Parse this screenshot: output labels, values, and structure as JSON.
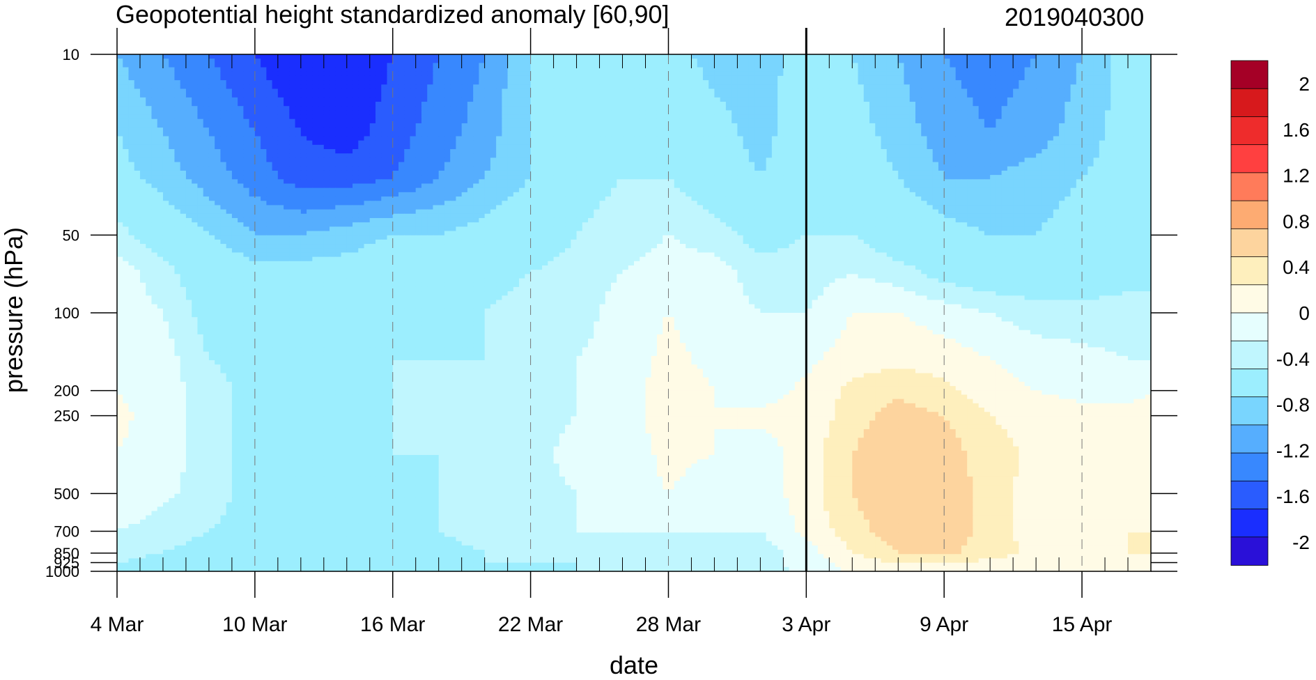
{
  "chart_data": {
    "type": "heatmap",
    "title": "Geopotential height standardized anomaly [60,90]",
    "title_right": "2019040300",
    "xlabel": "date",
    "ylabel": "pressure (hPa)",
    "x_tick_labels": [
      "4 Mar",
      "10 Mar",
      "16 Mar",
      "22 Mar",
      "28 Mar",
      "3 Apr",
      "9 Apr",
      "15 Apr"
    ],
    "x_range_days": [
      0,
      45
    ],
    "x_major_tick_days": [
      0,
      6,
      12,
      18,
      24,
      30,
      36,
      42
    ],
    "y_tick_labels": [
      "10",
      "50",
      "100",
      "200",
      "250",
      "500",
      "700",
      "850",
      "925",
      "1000"
    ],
    "y_tick_values": [
      10,
      50,
      100,
      200,
      250,
      500,
      700,
      850,
      925,
      1000
    ],
    "y_scale": "log",
    "y_range": [
      1000,
      10
    ],
    "vertical_marker_date": "3 Apr",
    "grid": "dashed vertical lines at major date ticks",
    "colorbar": {
      "labels": [
        "2",
        "1.6",
        "1.2",
        "0.8",
        "0.4",
        "0",
        "-0.4",
        "-0.8",
        "-1.2",
        "-1.6",
        "-2"
      ],
      "colors": [
        "#a50026",
        "#d7191c",
        "#ee2c2c",
        "#ff4040",
        "#ff7b5a",
        "#fdab72",
        "#fdd49e",
        "#feefbd",
        "#fffbe6",
        "#e6fefe",
        "#c0f6fe",
        "#9ceefe",
        "#79d5fe",
        "#56aefe",
        "#3888fe",
        "#2a5cfe",
        "#1a2efe",
        "#2a10d8"
      ]
    },
    "contour_levels": [
      -2.0,
      -1.8,
      -1.6,
      -1.4,
      -1.2,
      -1.0,
      -0.8,
      -0.6,
      -0.4,
      -0.2,
      0.0,
      0.2,
      0.4,
      0.6,
      0.8,
      1.0,
      1.2,
      1.4,
      1.6,
      1.8,
      2.0
    ],
    "field": {
      "x_days": [
        0,
        2,
        4,
        6,
        8,
        10,
        12,
        14,
        16,
        18,
        20,
        22,
        24,
        26,
        28,
        30,
        32,
        34,
        36,
        38,
        40,
        42,
        44,
        45
      ],
      "y_hPa": [
        10,
        20,
        30,
        50,
        70,
        100,
        150,
        200,
        250,
        350,
        500,
        700,
        850,
        925,
        1000
      ],
      "values": [
        [
          -1.0,
          -1.2,
          -1.4,
          -1.6,
          -1.8,
          -1.8,
          -1.6,
          -1.4,
          -1.2,
          -0.8,
          -0.6,
          -0.6,
          -0.7,
          -0.9,
          -0.9,
          -0.7,
          -0.8,
          -1.0,
          -1.2,
          -1.3,
          -1.2,
          -1.0,
          -0.7,
          -0.6
        ],
        [
          -0.8,
          -1.0,
          -1.2,
          -1.4,
          -1.6,
          -1.7,
          -1.5,
          -1.3,
          -1.1,
          -0.8,
          -0.6,
          -0.5,
          -0.5,
          -0.7,
          -0.9,
          -0.6,
          -0.7,
          -0.9,
          -1.1,
          -1.2,
          -1.1,
          -0.9,
          -0.7,
          -0.6
        ],
        [
          -0.7,
          -0.9,
          -1.1,
          -1.3,
          -1.5,
          -1.5,
          -1.4,
          -1.2,
          -1.0,
          -0.8,
          -0.5,
          -0.4,
          -0.4,
          -0.6,
          -0.8,
          -0.6,
          -0.6,
          -0.8,
          -1.0,
          -1.0,
          -0.9,
          -0.8,
          -0.7,
          -0.6
        ],
        [
          -0.3,
          -0.6,
          -0.8,
          -1.0,
          -1.0,
          -0.9,
          -0.8,
          -0.8,
          -0.7,
          -0.6,
          -0.4,
          -0.3,
          -0.2,
          -0.3,
          -0.5,
          -0.4,
          -0.4,
          -0.6,
          -0.7,
          -0.8,
          -0.8,
          -0.7,
          -0.6,
          -0.5
        ],
        [
          -0.1,
          -0.3,
          -0.6,
          -0.7,
          -0.7,
          -0.7,
          -0.6,
          -0.6,
          -0.5,
          -0.4,
          -0.3,
          -0.2,
          -0.1,
          -0.1,
          -0.3,
          -0.3,
          -0.2,
          -0.3,
          -0.5,
          -0.6,
          -0.6,
          -0.6,
          -0.5,
          -0.5
        ],
        [
          -0.1,
          -0.2,
          -0.5,
          -0.6,
          -0.6,
          -0.5,
          -0.5,
          -0.5,
          -0.4,
          -0.3,
          -0.3,
          -0.1,
          0.0,
          -0.1,
          -0.2,
          -0.2,
          0.0,
          0.0,
          -0.1,
          -0.2,
          -0.3,
          -0.3,
          -0.3,
          -0.3
        ],
        [
          0.0,
          -0.1,
          -0.4,
          -0.5,
          -0.5,
          -0.5,
          -0.4,
          -0.4,
          -0.4,
          -0.3,
          -0.2,
          -0.1,
          0.05,
          -0.05,
          -0.1,
          -0.05,
          0.1,
          0.15,
          0.1,
          0.0,
          -0.1,
          -0.15,
          -0.2,
          -0.2
        ],
        [
          0.0,
          -0.1,
          -0.3,
          -0.5,
          -0.5,
          -0.5,
          -0.4,
          -0.4,
          -0.3,
          -0.3,
          -0.2,
          -0.1,
          0.1,
          0.0,
          -0.1,
          0.05,
          0.25,
          0.35,
          0.25,
          0.1,
          0.0,
          -0.05,
          -0.05,
          0.0
        ],
        [
          0.05,
          -0.1,
          -0.3,
          -0.5,
          -0.5,
          -0.5,
          -0.4,
          -0.4,
          -0.3,
          -0.3,
          -0.2,
          -0.1,
          0.1,
          0.0,
          0.05,
          0.05,
          0.3,
          0.5,
          0.4,
          0.2,
          0.1,
          0.05,
          0.05,
          0.05
        ],
        [
          0.0,
          -0.1,
          -0.3,
          -0.5,
          -0.5,
          -0.5,
          -0.4,
          -0.4,
          -0.3,
          -0.3,
          -0.1,
          -0.1,
          0.05,
          0.0,
          -0.1,
          0.1,
          0.4,
          0.6,
          0.5,
          0.3,
          0.15,
          0.1,
          0.1,
          0.1
        ],
        [
          0.0,
          -0.15,
          -0.3,
          -0.5,
          -0.5,
          -0.5,
          -0.5,
          -0.4,
          -0.3,
          -0.3,
          -0.2,
          -0.1,
          0.0,
          -0.1,
          -0.1,
          0.1,
          0.4,
          0.6,
          0.55,
          0.3,
          0.1,
          0.1,
          0.15,
          0.2
        ],
        [
          -0.2,
          -0.3,
          -0.4,
          -0.5,
          -0.5,
          -0.5,
          -0.5,
          -0.4,
          -0.3,
          -0.3,
          -0.2,
          -0.2,
          -0.2,
          -0.2,
          -0.2,
          0.05,
          0.3,
          0.55,
          0.55,
          0.3,
          0.1,
          0.15,
          0.2,
          0.2
        ],
        [
          -0.3,
          -0.4,
          -0.5,
          -0.6,
          -0.5,
          -0.5,
          -0.5,
          -0.5,
          -0.4,
          -0.4,
          -0.3,
          -0.3,
          -0.3,
          -0.3,
          -0.3,
          -0.1,
          0.2,
          0.4,
          0.45,
          0.3,
          0.15,
          0.2,
          0.2,
          0.2
        ],
        [
          -0.4,
          -0.5,
          -0.6,
          -0.7,
          -0.65,
          -0.6,
          -0.5,
          -0.5,
          -0.4,
          -0.4,
          -0.4,
          -0.3,
          -0.3,
          -0.3,
          -0.3,
          -0.1,
          0.1,
          0.2,
          0.2,
          0.15,
          0.1,
          0.1,
          0.15,
          0.15
        ],
        [
          -0.4,
          -0.6,
          -0.7,
          -0.8,
          -0.7,
          -0.6,
          -0.5,
          -0.5,
          -0.5,
          -0.5,
          -0.4,
          -0.4,
          -0.4,
          -0.4,
          -0.4,
          -0.1,
          0.0,
          0.1,
          0.1,
          0.1,
          0.05,
          0.05,
          0.1,
          0.1
        ]
      ]
    }
  }
}
